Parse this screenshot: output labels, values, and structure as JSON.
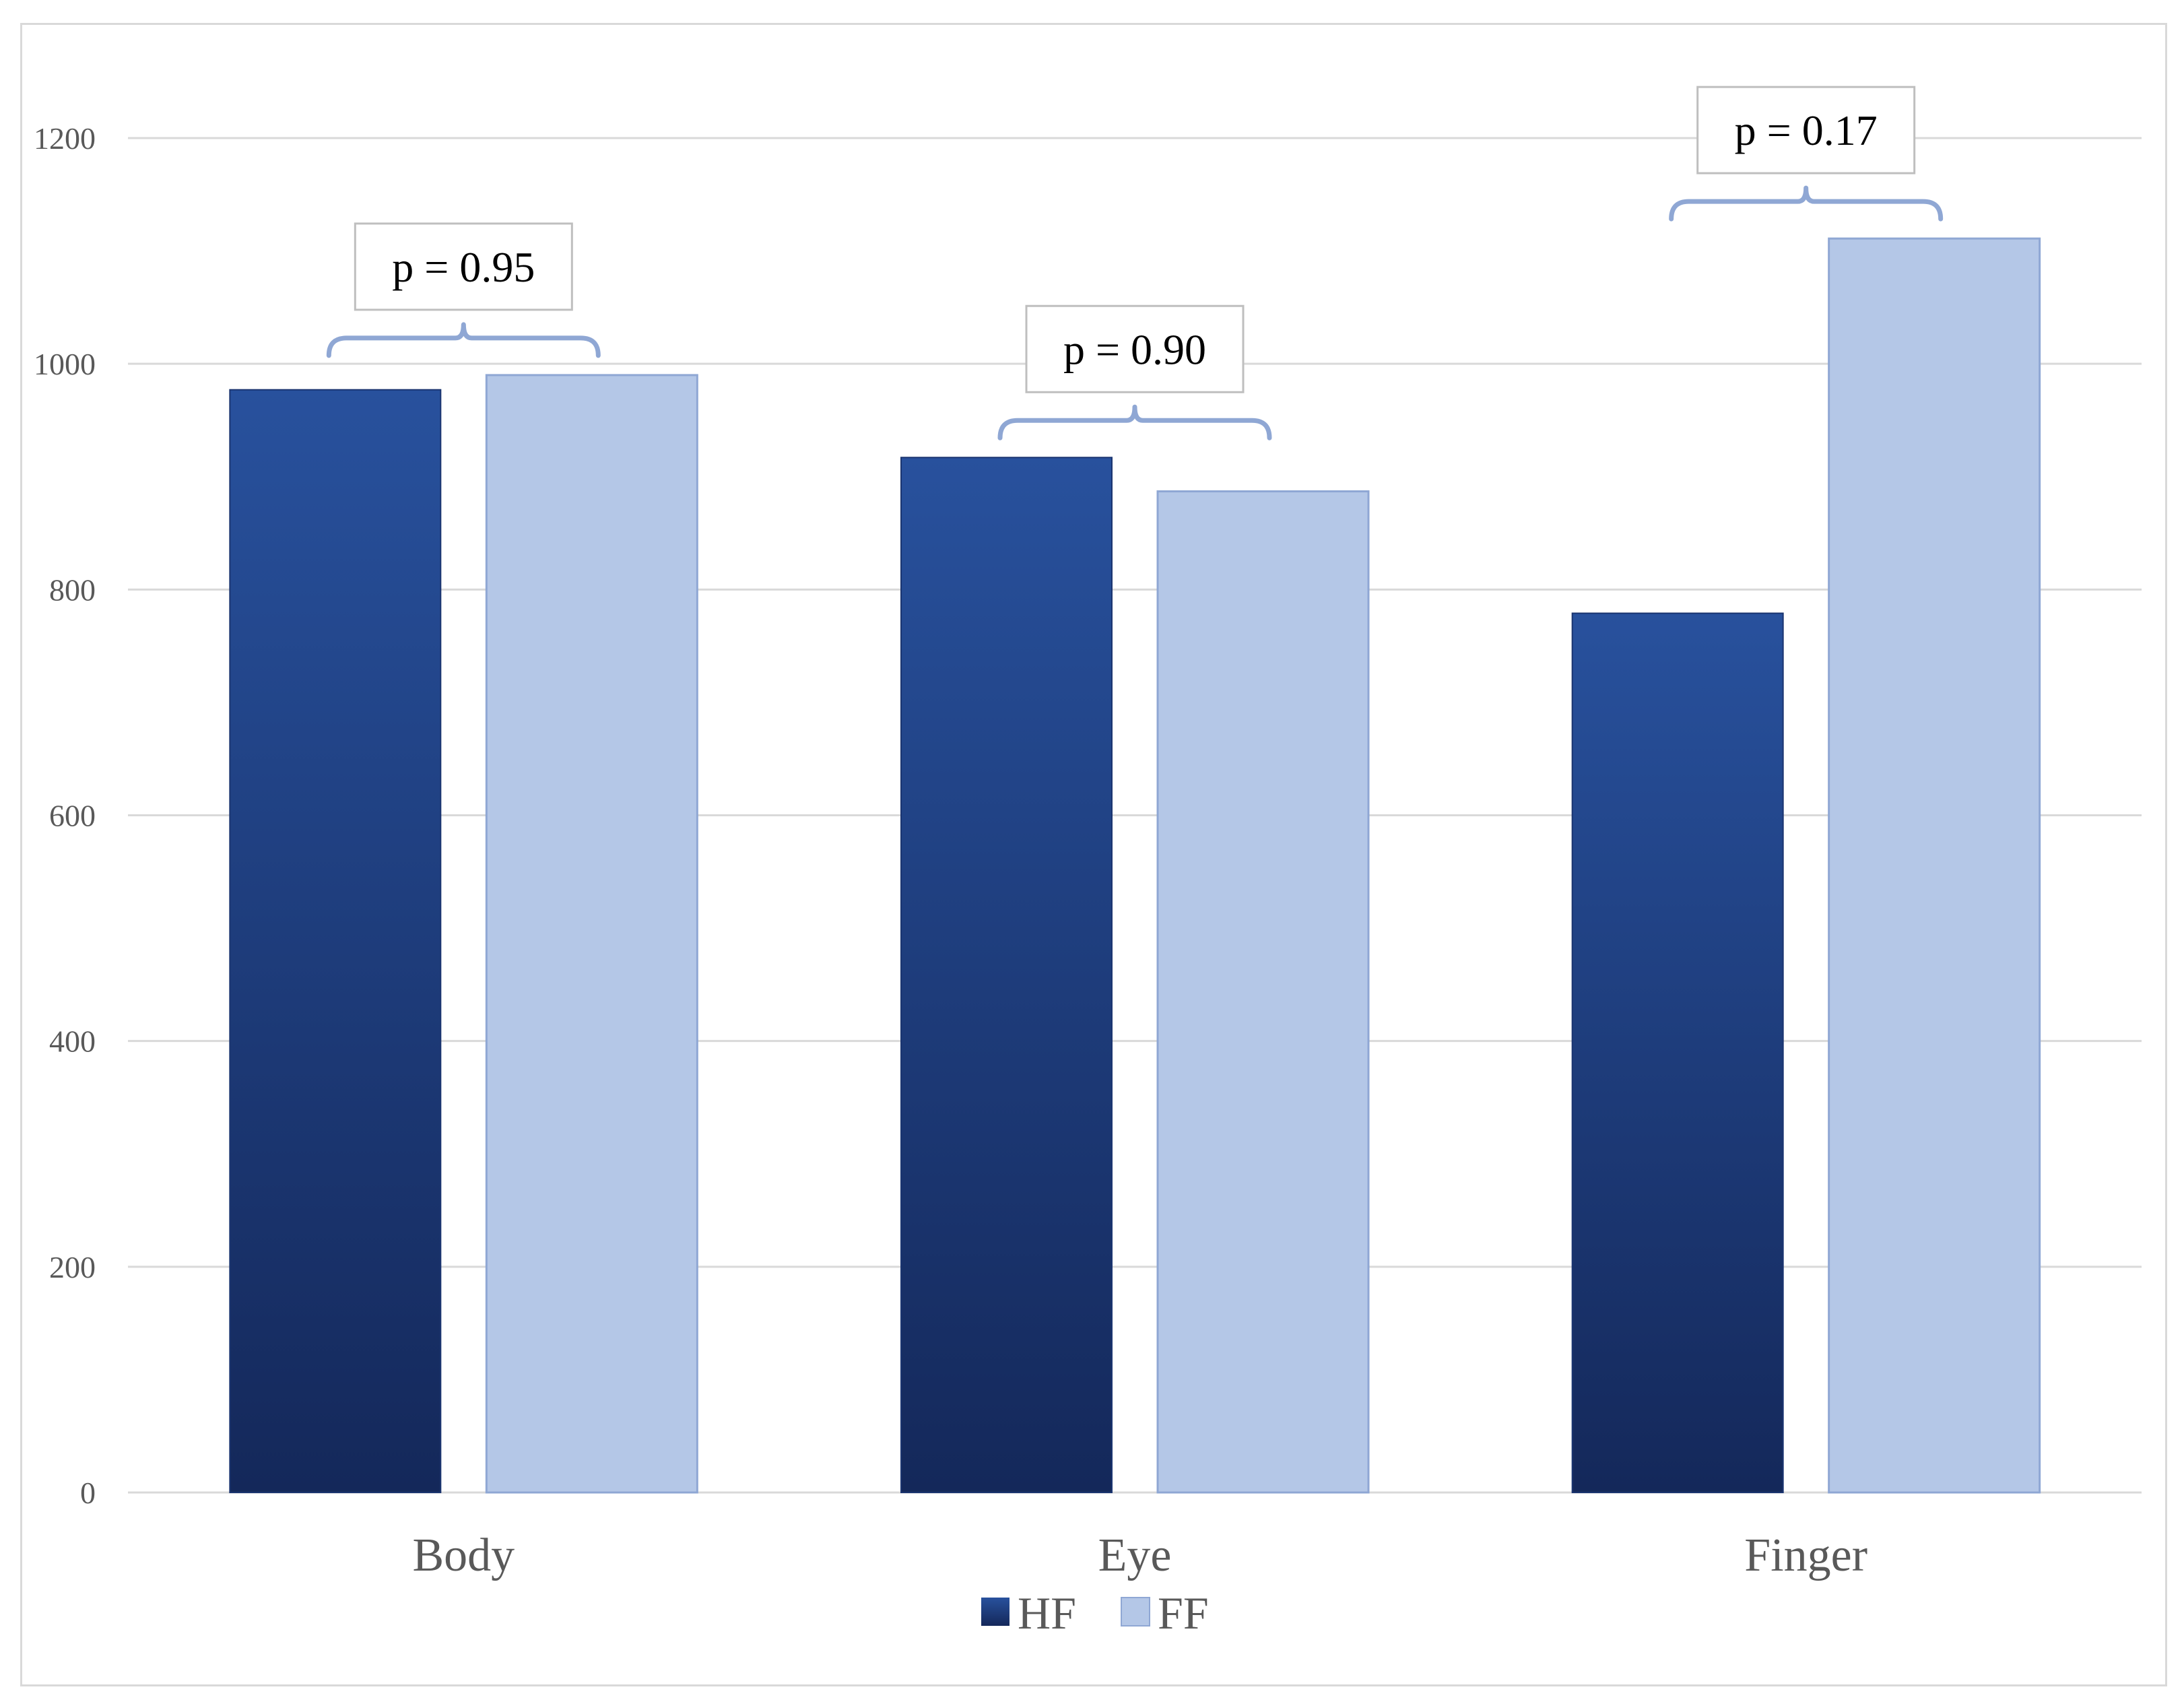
{
  "chart_data": {
    "type": "bar",
    "title": "",
    "xlabel": "",
    "ylabel": "",
    "categories": [
      "Body",
      "Eye",
      "Finger"
    ],
    "series": [
      {
        "name": "HF",
        "values": [
          977,
          917,
          779
        ],
        "color_top": "#28519d",
        "color_bottom": "#14285a"
      },
      {
        "name": "FF",
        "values": [
          990,
          887,
          1111
        ],
        "color": "#b4c7e7",
        "border": "#8fa7d4"
      }
    ],
    "ylim": [
      0,
      1200
    ],
    "yticks": [
      0,
      200,
      400,
      600,
      800,
      1000,
      1200
    ],
    "grid": true,
    "legend_position": "bottom-center",
    "annotations": [
      {
        "category": "Body",
        "text": "p = 0.95"
      },
      {
        "category": "Eye",
        "text": "p = 0.90"
      },
      {
        "category": "Finger",
        "text": "p = 0.17"
      }
    ],
    "colors": {
      "gridline": "#d9d9d9",
      "bracket": "#8fa7d4",
      "axis_text": "#595959"
    }
  }
}
